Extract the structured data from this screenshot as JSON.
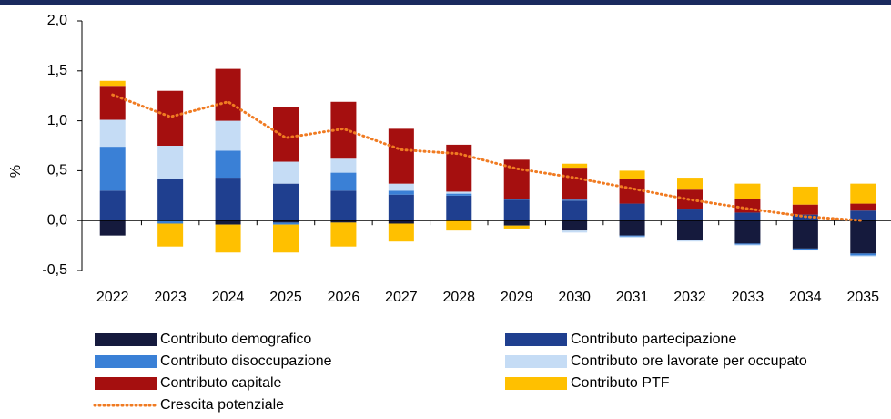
{
  "chart_data": {
    "type": "bar",
    "stacked": true,
    "y_label": "%",
    "categories": [
      "2022",
      "2023",
      "2024",
      "2025",
      "2026",
      "2027",
      "2028",
      "2029",
      "2030",
      "2031",
      "2032",
      "2033",
      "2034",
      "2035"
    ],
    "series": [
      {
        "name": "Contributo demografico",
        "color": "#151a3d",
        "values": [
          -0.15,
          0,
          -0.04,
          -0.02,
          -0.02,
          -0.03,
          0,
          -0.05,
          -0.1,
          -0.15,
          -0.19,
          -0.23,
          -0.28,
          -0.33
        ]
      },
      {
        "name": "Contributo partecipazione",
        "color": "#1f3f8f",
        "values": [
          0.3,
          0.42,
          0.43,
          0.37,
          0.3,
          0.26,
          0.25,
          0.21,
          0.2,
          0.17,
          0.12,
          0.08,
          0.06,
          0.1
        ]
      },
      {
        "name": "Contributo disoccupazione",
        "color": "#3a80d6",
        "values": [
          0.44,
          -0.03,
          0.27,
          -0.02,
          0.18,
          0.04,
          0.02,
          0.01,
          0.01,
          -0.01,
          -0.01,
          -0.01,
          -0.01,
          -0.02
        ]
      },
      {
        "name": "Contributo ore lavorate per occupato",
        "color": "#c5dcf5",
        "values": [
          0.27,
          0.33,
          0.3,
          0.22,
          0.14,
          0.07,
          0.02,
          0,
          -0.02,
          -0.01,
          -0.01,
          -0.01,
          -0.01,
          -0.01
        ]
      },
      {
        "name": "Contributo capitale",
        "color": "#a50f0f",
        "values": [
          0.34,
          0.55,
          0.52,
          0.55,
          0.57,
          0.55,
          0.47,
          0.39,
          0.32,
          0.25,
          0.19,
          0.14,
          0.1,
          0.07
        ]
      },
      {
        "name": "Contributo PTF",
        "color": "#ffc000",
        "values": [
          0.05,
          -0.23,
          -0.28,
          -0.28,
          -0.24,
          -0.18,
          -0.1,
          -0.03,
          0.04,
          0.08,
          0.12,
          0.15,
          0.18,
          0.2
        ]
      },
      {
        "name": "Crescita potenziale",
        "color": "#f07b22",
        "type": "line",
        "values": [
          1.26,
          1.04,
          1.19,
          0.83,
          0.92,
          0.71,
          0.67,
          0.52,
          0.43,
          0.32,
          0.21,
          0.12,
          0.04,
          0.0
        ]
      }
    ],
    "ylim": [
      -0.5,
      2.0
    ],
    "yticks": [
      {
        "value": -0.5,
        "label": "-0,5"
      },
      {
        "value": 0,
        "label": "0,0"
      },
      {
        "value": 0.5,
        "label": "0,5"
      },
      {
        "value": 1,
        "label": "1,0"
      },
      {
        "value": 1.5,
        "label": "1,5"
      },
      {
        "value": 2,
        "label": "2,0"
      }
    ],
    "grid": false
  }
}
